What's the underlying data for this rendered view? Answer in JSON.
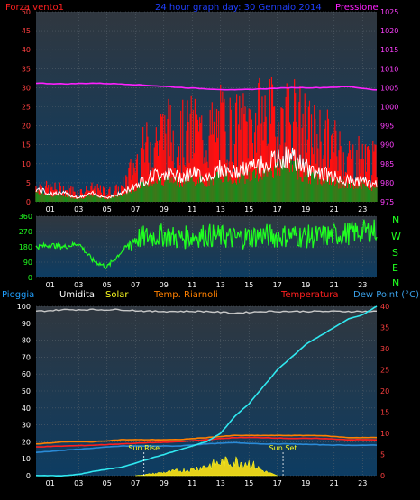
{
  "colors": {
    "wind_title": "#ff2020",
    "date_title": "#2040ff",
    "pressure_title": "#ff20ff",
    "rain": "#20a0ff",
    "humidity": "#ffffff",
    "solar": "#ffff20",
    "temp_riarnoli": "#ff8000",
    "temperature": "#ff2020",
    "dewpoint": "#3aa0e8",
    "dir": "#20ff20"
  },
  "panel1": {
    "title_left": "Forza vento1",
    "title_center": "24 hour graph day: 30 Gennaio 2014",
    "title_right": "Pressione",
    "y_left_ticks": [
      "0",
      "5",
      "10",
      "15",
      "20",
      "25",
      "30",
      "35",
      "40",
      "45",
      "50"
    ],
    "y_right_ticks": [
      "975",
      "980",
      "985",
      "990",
      "995",
      "1000",
      "1005",
      "1010",
      "1015",
      "1020",
      "1025"
    ]
  },
  "panel2": {
    "y_ticks": [
      "0",
      "90",
      "180",
      "270",
      "360"
    ],
    "compass": [
      "N",
      "W",
      "S",
      "E",
      "N"
    ]
  },
  "panel3": {
    "labels": {
      "rain": "Pioggia",
      "humidity": "Umidita",
      "solar": "Solar",
      "temp_riarnoli": "Temp. Riarnoli",
      "temperature": "Temperatura",
      "dewpoint": "Dew Point (°C)"
    },
    "y_left_ticks": [
      "0",
      "10",
      "20",
      "30",
      "40",
      "50",
      "60",
      "70",
      "80",
      "90",
      "100"
    ],
    "y_right_ticks": [
      "0",
      "5",
      "10",
      "15",
      "20",
      "25",
      "30",
      "35",
      "40"
    ],
    "sun_rise": "Sun Rise",
    "sun_set": "Sun Set"
  },
  "x_ticks": [
    "01",
    "03",
    "05",
    "07",
    "09",
    "11",
    "13",
    "15",
    "17",
    "19",
    "21",
    "23"
  ],
  "chart_data": [
    {
      "type": "line",
      "title": "24 hour graph day: 30 Gennaio 2014",
      "series": [
        {
          "name": "Forza vento1",
          "axis": "left",
          "ylim": [
            0,
            50
          ],
          "x_hours": [
            0,
            1,
            2,
            3,
            4,
            5,
            6,
            7,
            8,
            9,
            10,
            11,
            12,
            13,
            14,
            15,
            16,
            17,
            18,
            19,
            20,
            21,
            22,
            23,
            24
          ],
          "values": [
            5,
            4,
            4,
            3,
            4,
            3,
            4,
            12,
            18,
            22,
            20,
            22,
            20,
            24,
            22,
            24,
            26,
            25,
            27,
            22,
            20,
            18,
            14,
            14,
            12
          ]
        },
        {
          "name": "Pressione",
          "axis": "right",
          "ylim": [
            975,
            1025
          ],
          "x_hours": [
            0,
            2,
            4,
            6,
            8,
            10,
            12,
            14,
            16,
            18,
            20,
            22,
            24
          ],
          "values": [
            1006.2,
            1006.0,
            1006.2,
            1006.0,
            1005.6,
            1005.1,
            1004.7,
            1004.4,
            1004.7,
            1005.0,
            1005.0,
            1005.3,
            1004.4
          ]
        }
      ],
      "gust_series": {
        "name": "Forza vento1 (mean)",
        "x_hours": [
          0,
          1,
          2,
          3,
          4,
          5,
          6,
          7,
          8,
          9,
          10,
          11,
          12,
          13,
          14,
          15,
          16,
          17,
          18,
          19,
          20,
          21,
          22,
          23,
          24
        ],
        "values": [
          3,
          2,
          2,
          1,
          2,
          1,
          2,
          4,
          6,
          7,
          6,
          7,
          6,
          8,
          7,
          8,
          9,
          10,
          11,
          8,
          7,
          6,
          5,
          5,
          4
        ]
      }
    },
    {
      "type": "scatter",
      "series": [
        {
          "name": "Direzione",
          "ylim": [
            0,
            360
          ],
          "x_hours": [
            0,
            1,
            2,
            3,
            4,
            5,
            6,
            7,
            8,
            9,
            10,
            11,
            12,
            13,
            14,
            15,
            16,
            17,
            18,
            19,
            20,
            21,
            22,
            23,
            24
          ],
          "values": [
            180,
            190,
            180,
            200,
            100,
            60,
            150,
            230,
            240,
            250,
            230,
            240,
            250,
            240,
            230,
            240,
            250,
            240,
            250,
            240,
            240,
            250,
            260,
            270,
            280
          ]
        }
      ]
    },
    {
      "type": "line",
      "series": [
        {
          "name": "Umidita",
          "axis": "left",
          "ylim": [
            0,
            100
          ],
          "x_hours": [
            0,
            2,
            4,
            6,
            8,
            10,
            12,
            14,
            16,
            18,
            20,
            22,
            24
          ],
          "values": [
            97,
            98,
            98,
            98,
            97,
            97,
            97,
            96,
            97,
            97,
            97,
            97,
            97
          ]
        },
        {
          "name": "Pioggia",
          "axis": "right",
          "ylim": [
            0,
            40
          ],
          "x_hours": [
            0,
            1,
            2,
            3,
            4,
            5,
            6,
            7,
            8,
            9,
            10,
            11,
            12,
            13,
            14,
            15,
            16,
            17,
            18,
            19,
            20,
            21,
            22,
            23,
            24
          ],
          "values": [
            0,
            0,
            0,
            0.3,
            1,
            1.5,
            2,
            3,
            4,
            5,
            6,
            7,
            8,
            10,
            14,
            17,
            21,
            25,
            28,
            31,
            33,
            35,
            37,
            38,
            40
          ]
        },
        {
          "name": "Temp. Riarnoli",
          "axis": "right",
          "ylim": [
            0,
            40
          ],
          "x_hours": [
            0,
            2,
            4,
            6,
            8,
            10,
            12,
            14,
            16,
            18,
            20,
            22,
            24
          ],
          "values": [
            7.5,
            8,
            8,
            8.5,
            8.5,
            8.5,
            9,
            9.5,
            9.5,
            9.5,
            9.5,
            9,
            9
          ]
        },
        {
          "name": "Temperatura",
          "axis": "right",
          "ylim": [
            0,
            40
          ],
          "x_hours": [
            0,
            2,
            4,
            6,
            8,
            10,
            12,
            14,
            16,
            18,
            20,
            22,
            24
          ],
          "values": [
            6.8,
            7,
            7.2,
            7.5,
            7.8,
            8,
            8.5,
            9,
            9,
            8.8,
            8.8,
            8.5,
            8.5
          ]
        },
        {
          "name": "Dew Point (°C)",
          "axis": "right",
          "ylim": [
            0,
            40
          ],
          "x_hours": [
            0,
            2,
            4,
            6,
            8,
            10,
            12,
            14,
            16,
            18,
            20,
            22,
            24
          ],
          "values": [
            5.5,
            6,
            6.5,
            7,
            7,
            7,
            7.5,
            7.8,
            7.5,
            7.5,
            7.3,
            7.2,
            7.2
          ]
        },
        {
          "name": "Solar",
          "axis": "left",
          "ylim": [
            0,
            100
          ],
          "x_hours": [
            7,
            8,
            9,
            10,
            11,
            12,
            13,
            14,
            15,
            16,
            17
          ],
          "values": [
            0,
            1,
            2,
            3,
            4,
            6,
            8,
            9,
            8,
            3,
            0
          ]
        }
      ]
    }
  ]
}
